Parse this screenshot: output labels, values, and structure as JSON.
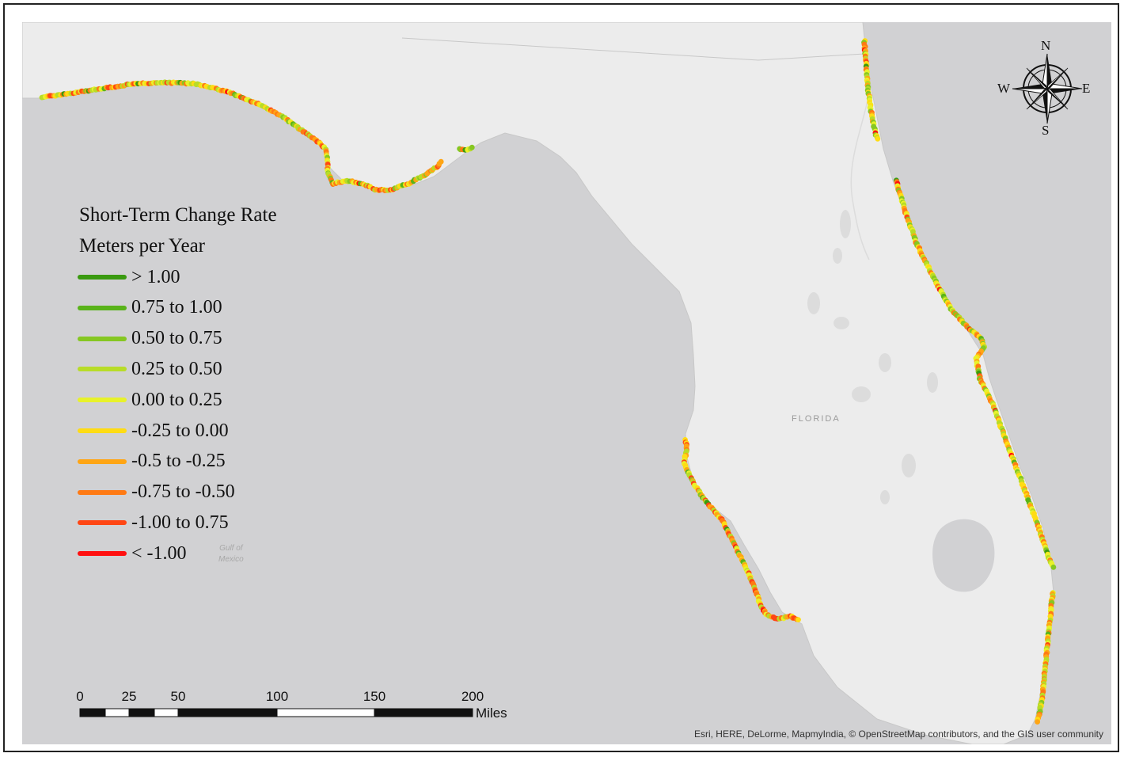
{
  "map": {
    "state_label": "FLORIDA",
    "water_label_line1": "Gulf of",
    "water_label_line2": "Mexico",
    "credits": "Esri, HERE, DeLorme, MapmyIndia, © OpenStreetMap contributors, and the GIS user community",
    "colors": {
      "water": "#d1d1d3",
      "land": "#ececec"
    }
  },
  "legend": {
    "title_line1": "Short-Term Change Rate",
    "title_line2": "Meters per Year",
    "items": [
      {
        "label": "> 1.00",
        "color": "#3a9a10"
      },
      {
        "label": "0.75 to 1.00",
        "color": "#59b31a"
      },
      {
        "label": "0.50 to 0.75",
        "color": "#86c722"
      },
      {
        "label": "0.25 to 0.50",
        "color": "#b8dc28"
      },
      {
        "label": "0.00 to 0.25",
        "color": "#e8f22a"
      },
      {
        "label": "-0.25 to 0.00",
        "color": "#ffdc14"
      },
      {
        "label": "-0.5 to -0.25",
        "color": "#ffa514"
      },
      {
        "label": "-0.75 to -0.50",
        "color": "#ff7a14"
      },
      {
        "label": "-1.00 to 0.75",
        "color": "#ff4614"
      },
      {
        "label": "< -1.00",
        "color": "#ff1010"
      }
    ]
  },
  "scale_bar": {
    "ticks": [
      "0",
      "25",
      "50",
      "100",
      "150",
      "200"
    ],
    "unit": "Miles"
  },
  "compass": {
    "north": "N",
    "south": "S",
    "east": "E",
    "west": "W"
  }
}
